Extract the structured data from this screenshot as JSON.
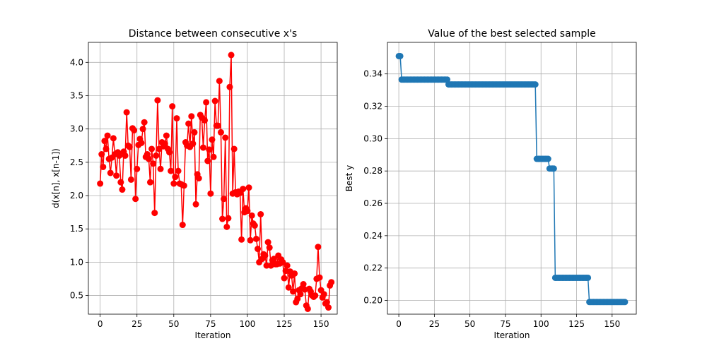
{
  "chart_data": [
    {
      "type": "line",
      "title": "Distance between consecutive x's",
      "xlabel": "Iteration",
      "ylabel": "d(x[n], x[n-1])",
      "xlim": [
        -8,
        161
      ],
      "ylim": [
        0.22,
        4.3
      ],
      "xticks": [
        0,
        25,
        50,
        75,
        100,
        125,
        150
      ],
      "yticks": [
        0.5,
        1.0,
        1.5,
        2.0,
        2.5,
        3.0,
        3.5,
        4.0
      ],
      "ytick_format": 1,
      "grid": true,
      "color": "#ff0000",
      "marker": "circle",
      "series": [
        {
          "x_start": 0,
          "values": [
            2.18,
            2.62,
            2.43,
            2.82,
            2.7,
            2.9,
            2.55,
            2.34,
            2.57,
            2.86,
            2.62,
            2.3,
            2.65,
            2.6,
            2.2,
            2.09,
            2.66,
            2.6,
            3.25,
            2.75,
            2.73,
            2.24,
            3.01,
            2.98,
            1.95,
            2.4,
            2.76,
            2.85,
            2.79,
            3.0,
            3.1,
            2.58,
            2.62,
            2.55,
            2.2,
            2.7,
            2.48,
            1.74,
            2.6,
            3.43,
            2.7,
            2.4,
            2.8,
            2.74,
            2.78,
            2.9,
            2.7,
            2.65,
            2.37,
            3.34,
            2.18,
            2.28,
            3.16,
            2.37,
            2.18,
            2.17,
            1.56,
            2.15,
            2.8,
            2.75,
            3.08,
            2.73,
            3.19,
            2.78,
            2.95,
            1.87,
            2.32,
            2.26,
            3.21,
            3.17,
            2.72,
            3.13,
            3.4,
            2.52,
            2.69,
            2.03,
            2.84,
            2.58,
            3.42,
            3.05,
            3.05,
            3.72,
            2.95,
            1.65,
            1.95,
            2.87,
            1.53,
            1.66,
            3.63,
            4.11,
            2.03,
            2.7,
            2.05,
            2.02,
            2.06,
            2.04,
            1.34,
            2.1,
            1.75,
            1.81,
            1.77,
            2.12,
            1.33,
            1.7,
            1.58,
            1.55,
            1.35,
            1.2,
            1.0,
            1.72,
            1.05,
            1.12,
            1.1,
            0.95,
            1.3,
            1.22,
            0.95,
            1.03,
            1.05,
            0.97,
            0.97,
            1.1,
            0.98,
            1.04,
            1.0,
            0.76,
            0.87,
            0.95,
            0.62,
            0.86,
            0.8,
            0.56,
            0.83,
            0.4,
            0.45,
            0.58,
            0.52,
            0.61,
            0.67,
            0.59,
            0.35,
            0.3,
            0.6,
            0.56,
            0.5,
            0.48,
            0.5,
            0.75,
            1.23,
            0.77,
            0.58,
            0.47,
            0.52,
            0.38,
            0.4,
            0.32,
            0.65,
            0.7
          ]
        }
      ]
    },
    {
      "type": "line",
      "title": "Value of the best selected sample",
      "xlabel": "Iteration",
      "ylabel": "Best y",
      "xlim": [
        -8,
        167
      ],
      "ylim": [
        0.1915,
        0.3595
      ],
      "xticks": [
        0,
        25,
        50,
        75,
        100,
        125,
        150
      ],
      "yticks": [
        0.2,
        0.22,
        0.24,
        0.26,
        0.28,
        0.3,
        0.32,
        0.34
      ],
      "ytick_format": 2,
      "grid": true,
      "color": "#1f77b4",
      "marker": "circle",
      "series": [
        {
          "segments": [
            {
              "from": 0,
              "to": 1,
              "value": 0.351
            },
            {
              "from": 2,
              "to": 34,
              "value": 0.3365
            },
            {
              "from": 35,
              "to": 96,
              "value": 0.3335
            },
            {
              "from": 97,
              "to": 105,
              "value": 0.2875
            },
            {
              "from": 106,
              "to": 109,
              "value": 0.2815
            },
            {
              "from": 110,
              "to": 133,
              "value": 0.214
            },
            {
              "from": 134,
              "to": 159,
              "value": 0.199
            }
          ]
        }
      ]
    }
  ]
}
